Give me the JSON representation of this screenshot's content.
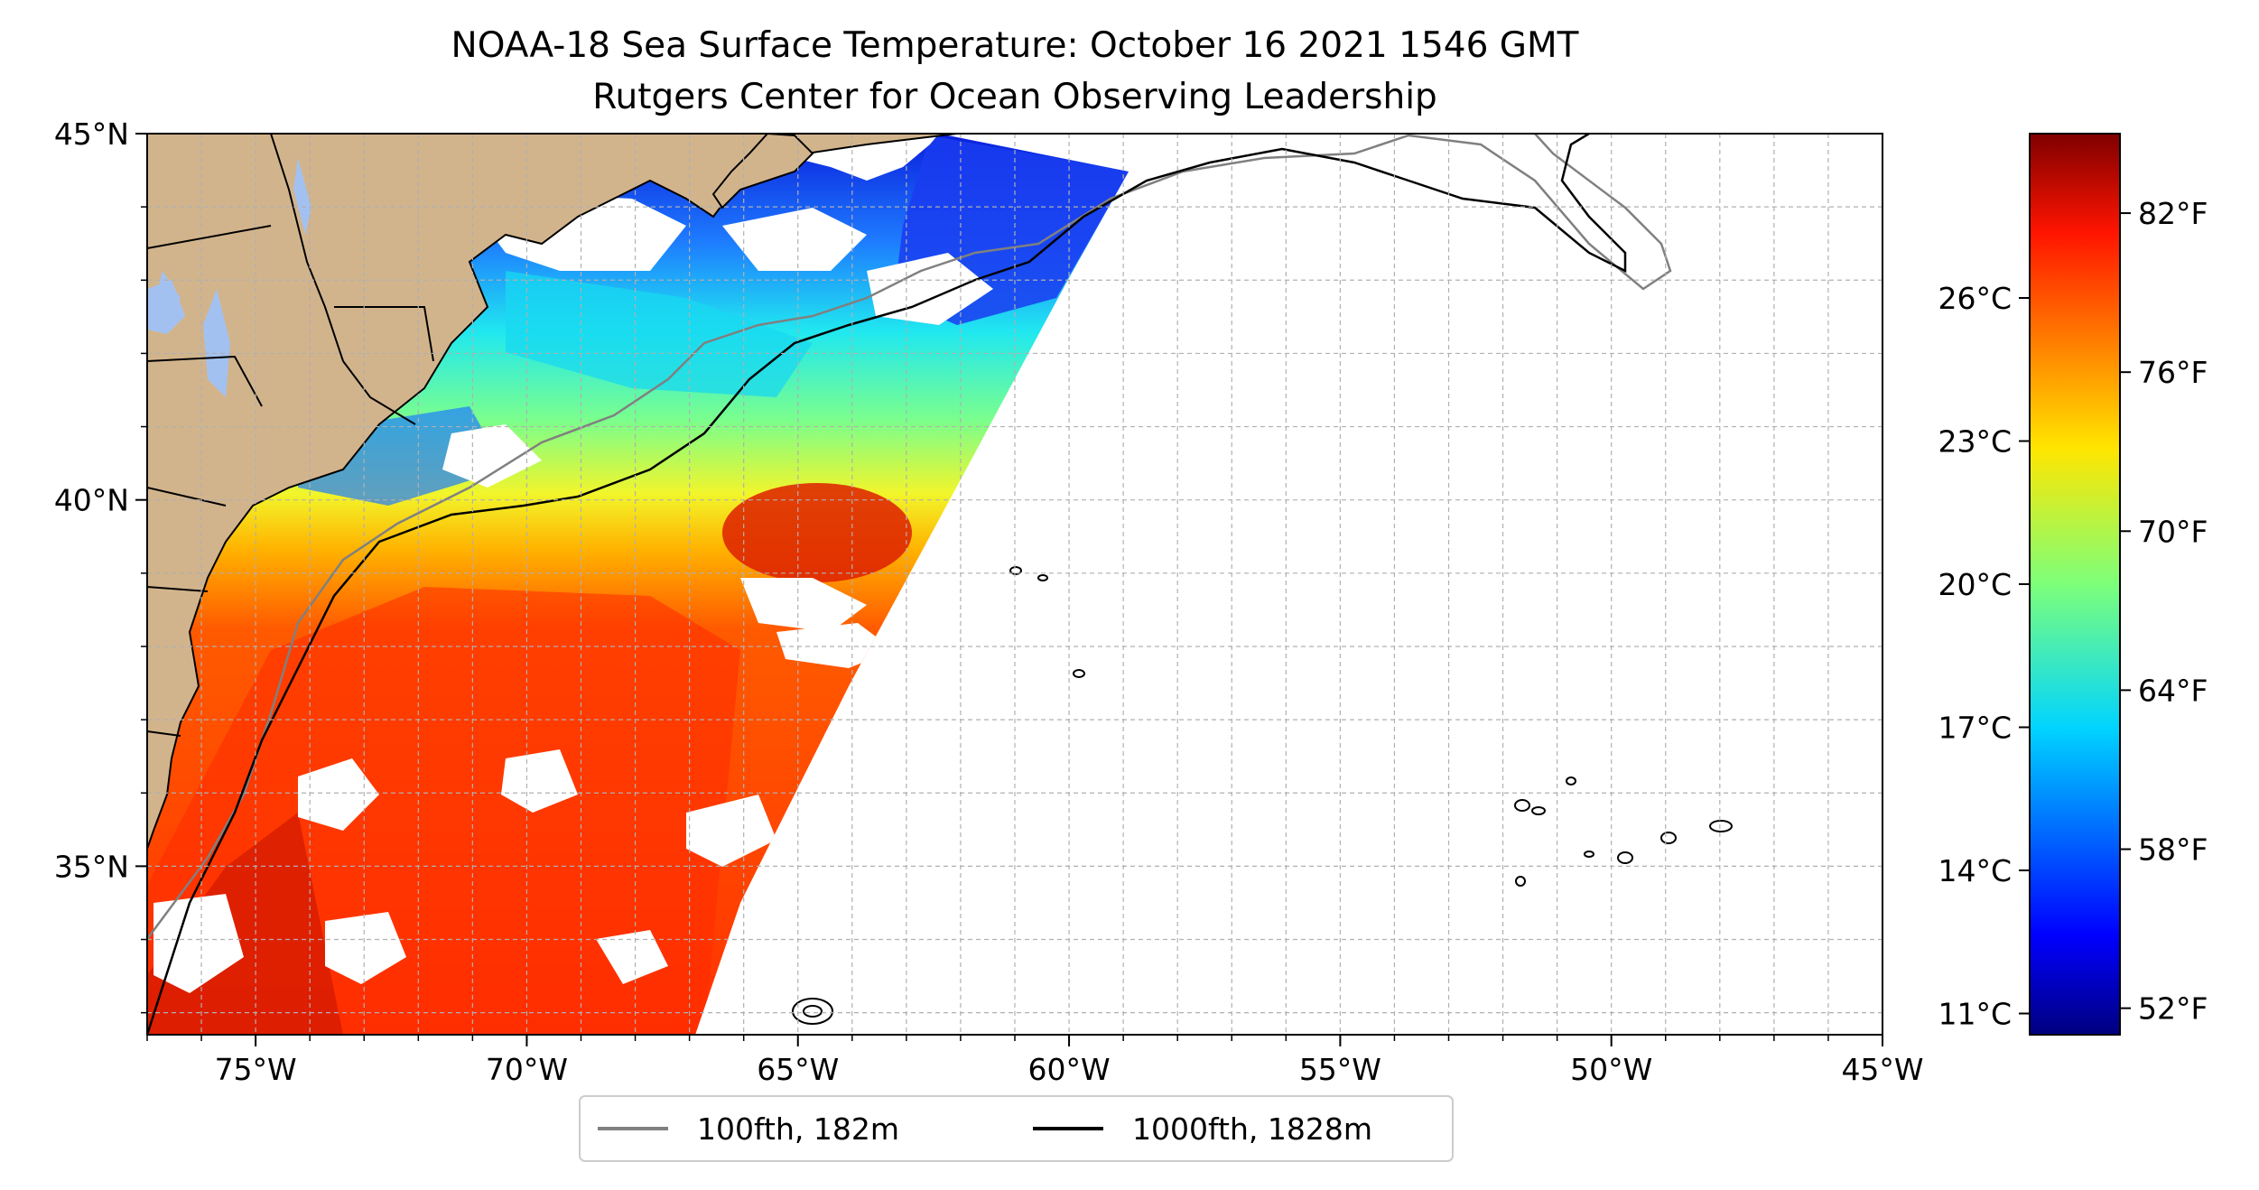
{
  "figure": {
    "title": "NOAA-18 Sea Surface Temperature: October 16 2021 1546 GMT",
    "subtitle": "Rutgers Center for Ocean Observing Leadership"
  },
  "map": {
    "lon_range": [
      -77,
      -45
    ],
    "lat_range": [
      32.7,
      45
    ],
    "land_color": "#d2b48c",
    "lake_color": "#a3c1f0",
    "ocean_color": "#ffffff",
    "grid": true,
    "x_ticks": [
      {
        "value": -75,
        "label": "75°W"
      },
      {
        "value": -70,
        "label": "70°W"
      },
      {
        "value": -65,
        "label": "65°W"
      },
      {
        "value": -60,
        "label": "60°W"
      },
      {
        "value": -55,
        "label": "55°W"
      },
      {
        "value": -50,
        "label": "50°W"
      },
      {
        "value": -45,
        "label": "45°W"
      }
    ],
    "y_ticks": [
      {
        "value": 45,
        "label": "45°N"
      },
      {
        "value": 40,
        "label": "40°N"
      },
      {
        "value": 35,
        "label": "35°N"
      }
    ]
  },
  "legend": {
    "placement": "bottom-center",
    "items": [
      {
        "label": "100fth, 182m",
        "color": "#808080"
      },
      {
        "label": "1000fth, 1828m",
        "color": "#000000"
      }
    ]
  },
  "colorbar": {
    "colormap": "jet",
    "range_f": [
      51,
      85
    ],
    "fahrenheit_ticks": [
      {
        "value": 52,
        "label": "52°F"
      },
      {
        "value": 58,
        "label": "58°F"
      },
      {
        "value": 64,
        "label": "64°F"
      },
      {
        "value": 70,
        "label": "70°F"
      },
      {
        "value": 76,
        "label": "76°F"
      },
      {
        "value": 82,
        "label": "82°F"
      }
    ],
    "celsius_ticks": [
      {
        "value": 11,
        "label": "11°C"
      },
      {
        "value": 14,
        "label": "14°C"
      },
      {
        "value": 17,
        "label": "17°C"
      },
      {
        "value": 20,
        "label": "20°C"
      },
      {
        "value": 23,
        "label": "23°C"
      },
      {
        "value": 26,
        "label": "26°C"
      }
    ]
  }
}
